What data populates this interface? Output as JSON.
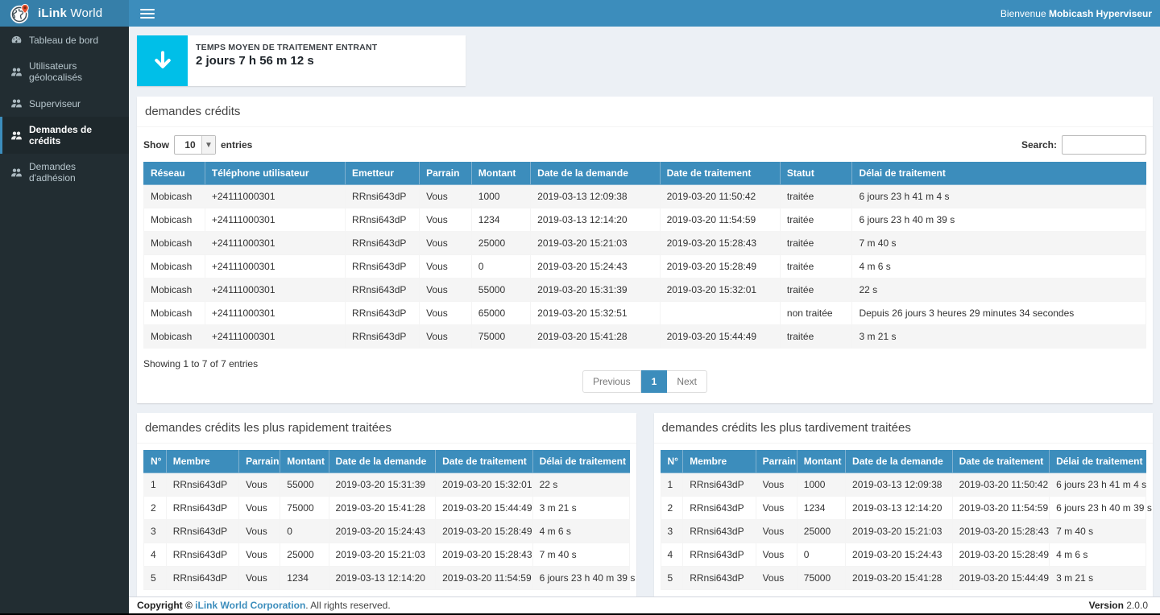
{
  "theme": {
    "primary": "#3c8dbc",
    "primary_dark": "#367fa9",
    "sidebar_bg": "#222d32",
    "sidebar_active_bg": "#1e282c",
    "sidebar_text": "#b8c7ce",
    "content_bg": "#ecf0f5",
    "widget_icon": "#00bfe8",
    "link": "#3c8dbc",
    "stripe": "#f5f5f5",
    "cell_border": "#f4f4f4"
  },
  "header": {
    "brand_bold": "iLink",
    "brand_regular": " World",
    "logo_icon": "globe-with-pin-icon",
    "menu_icon": "hamburger-icon",
    "welcome_prefix": "Bienvenue ",
    "welcome_user": "Mobicash Hyperviseur"
  },
  "sidebar": {
    "items": [
      {
        "label": "Tableau de bord",
        "icon": "dashboard-icon",
        "active": false
      },
      {
        "label": "Utilisateurs géolocalisés",
        "icon": "users-icon",
        "active": false
      },
      {
        "label": "Superviseur",
        "icon": "users-icon",
        "active": false
      },
      {
        "label": "Demandes de crédits",
        "icon": "users-icon",
        "active": true
      },
      {
        "label": "Demandes d'adhésion",
        "icon": "users-icon",
        "active": false
      }
    ]
  },
  "widget": {
    "icon": "arrow-down-icon",
    "icon_color": "#00bfe8",
    "title": "TEMPS MOYEN DE TRAITEMENT ENTRANT",
    "value": "2 jours 7 h 56 m 12 s"
  },
  "credits_panel": {
    "title": "demandes crédits",
    "show_label": "Show",
    "page_length": "10",
    "entries_label": "entries",
    "search_label": "Search:",
    "search_value": "",
    "columns": [
      "Réseau",
      "Téléphone utilisateur",
      "Emetteur",
      "Parrain",
      "Montant",
      "Date de la demande",
      "Date de traitement",
      "Statut",
      "Délai de traitement"
    ],
    "rows": [
      [
        "Mobicash",
        "+24111000301",
        "RRnsi643dP",
        "Vous",
        "1000",
        "2019-03-13 12:09:38",
        "2019-03-20 11:50:42",
        "traitée",
        "6 jours 23 h 41 m 4 s"
      ],
      [
        "Mobicash",
        "+24111000301",
        "RRnsi643dP",
        "Vous",
        "1234",
        "2019-03-13 12:14:20",
        "2019-03-20 11:54:59",
        "traitée",
        "6 jours 23 h 40 m 39 s"
      ],
      [
        "Mobicash",
        "+24111000301",
        "RRnsi643dP",
        "Vous",
        "25000",
        "2019-03-20 15:21:03",
        "2019-03-20 15:28:43",
        "traitée",
        "7 m 40 s"
      ],
      [
        "Mobicash",
        "+24111000301",
        "RRnsi643dP",
        "Vous",
        "0",
        "2019-03-20 15:24:43",
        "2019-03-20 15:28:49",
        "traitée",
        "4 m 6 s"
      ],
      [
        "Mobicash",
        "+24111000301",
        "RRnsi643dP",
        "Vous",
        "55000",
        "2019-03-20 15:31:39",
        "2019-03-20 15:32:01",
        "traitée",
        "22 s"
      ],
      [
        "Mobicash",
        "+24111000301",
        "RRnsi643dP",
        "Vous",
        "65000",
        "2019-03-20 15:32:51",
        "",
        "non traitée",
        "Depuis 26 jours 3 heures 29 minutes 34 secondes"
      ],
      [
        "Mobicash",
        "+24111000301",
        "RRnsi643dP",
        "Vous",
        "75000",
        "2019-03-20 15:41:28",
        "2019-03-20 15:44:49",
        "traitée",
        "3 m 21 s"
      ]
    ],
    "info": "Showing 1 to 7 of 7 entries",
    "pagination": {
      "previous": "Previous",
      "page": "1",
      "next": "Next"
    }
  },
  "fastest_panel": {
    "title": "demandes crédits les plus rapidement traitées",
    "columns": [
      "N°",
      "Membre",
      "Parrain",
      "Montant",
      "Date de la demande",
      "Date de traitement",
      "Délai de traitement"
    ],
    "rows": [
      [
        "1",
        "RRnsi643dP",
        "Vous",
        "55000",
        "2019-03-20 15:31:39",
        "2019-03-20 15:32:01",
        "22 s"
      ],
      [
        "2",
        "RRnsi643dP",
        "Vous",
        "75000",
        "2019-03-20 15:41:28",
        "2019-03-20 15:44:49",
        "3 m 21 s"
      ],
      [
        "3",
        "RRnsi643dP",
        "Vous",
        "0",
        "2019-03-20 15:24:43",
        "2019-03-20 15:28:49",
        "4 m 6 s"
      ],
      [
        "4",
        "RRnsi643dP",
        "Vous",
        "25000",
        "2019-03-20 15:21:03",
        "2019-03-20 15:28:43",
        "7 m 40 s"
      ],
      [
        "5",
        "RRnsi643dP",
        "Vous",
        "1234",
        "2019-03-13 12:14:20",
        "2019-03-20 11:54:59",
        "6 jours 23 h 40 m 39 s"
      ]
    ]
  },
  "slowest_panel": {
    "title": "demandes crédits les plus tardivement traitées",
    "columns": [
      "N°",
      "Membre",
      "Parrain",
      "Montant",
      "Date de la demande",
      "Date de traitement",
      "Délai de traitement"
    ],
    "rows": [
      [
        "1",
        "RRnsi643dP",
        "Vous",
        "1000",
        "2019-03-13 12:09:38",
        "2019-03-20 11:50:42",
        "6 jours 23 h 41 m 4 s"
      ],
      [
        "2",
        "RRnsi643dP",
        "Vous",
        "1234",
        "2019-03-13 12:14:20",
        "2019-03-20 11:54:59",
        "6 jours 23 h 40 m 39 s"
      ],
      [
        "3",
        "RRnsi643dP",
        "Vous",
        "25000",
        "2019-03-20 15:21:03",
        "2019-03-20 15:28:43",
        "7 m 40 s"
      ],
      [
        "4",
        "RRnsi643dP",
        "Vous",
        "0",
        "2019-03-20 15:24:43",
        "2019-03-20 15:28:49",
        "4 m 6 s"
      ],
      [
        "5",
        "RRnsi643dP",
        "Vous",
        "75000",
        "2019-03-20 15:41:28",
        "2019-03-20 15:44:49",
        "3 m 21 s"
      ]
    ]
  },
  "footer": {
    "copyright_bold": "Copyright © ",
    "company_link": "iLink World Corporation",
    "rights": ". All rights reserved.",
    "version_label": "Version",
    "version_value": "2.0.0"
  }
}
